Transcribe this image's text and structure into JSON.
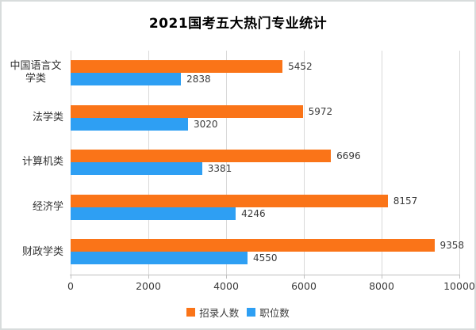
{
  "chart_data": {
    "type": "bar",
    "orientation": "horizontal",
    "title": "2021国考五大热门专业统计",
    "categories": [
      "中国语言文学类",
      "法学类",
      "计算机类",
      "经济学",
      "财政学类"
    ],
    "series": [
      {
        "name": "招录人数",
        "color": "#fa7418",
        "values": [
          5452,
          5972,
          6696,
          8157,
          9358
        ]
      },
      {
        "name": "职位数",
        "color": "#2e9ff3",
        "values": [
          2838,
          3020,
          3381,
          4246,
          4550
        ]
      }
    ],
    "xlim": [
      0,
      10000
    ],
    "x_ticks": [
      "0",
      "2000",
      "4000",
      "6000",
      "8000",
      "10000"
    ],
    "grid": "vertical",
    "gridline_color": "#d9d9d9",
    "axis_color": "#bfbfbf",
    "text_color": "#3a3a3a",
    "legend_position": "bottom",
    "value_labels": true
  }
}
